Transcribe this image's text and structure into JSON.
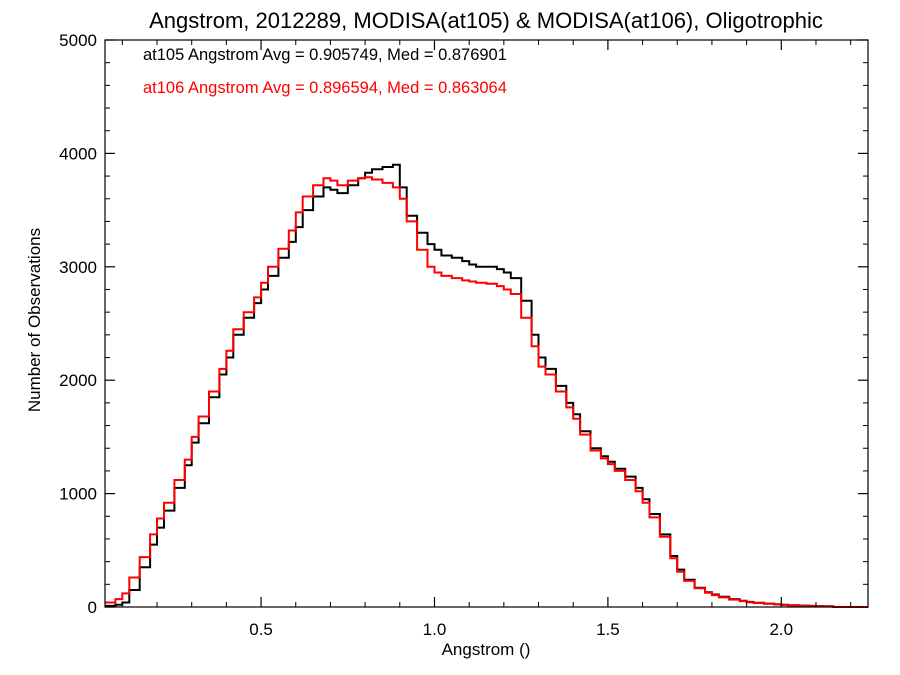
{
  "chart_data": {
    "type": "line",
    "title": "Angstrom, 2012289, MODISA(at105) & MODISA(at106), Oligotrophic",
    "xlabel": "Angstrom ()",
    "ylabel": "Number of Observations",
    "xlim": [
      0.05,
      2.25
    ],
    "ylim": [
      0,
      5000
    ],
    "x_ticks": [
      0.5,
      1.0,
      1.5,
      2.0
    ],
    "x_tick_labels": [
      "0.5",
      "1.0",
      "1.5",
      "2.0"
    ],
    "y_ticks": [
      0,
      1000,
      2000,
      3000,
      4000,
      5000
    ],
    "y_tick_labels": [
      "0",
      "1000",
      "2000",
      "3000",
      "4000",
      "5000"
    ],
    "grid": false,
    "legend_position": "top-left",
    "step": true,
    "series": [
      {
        "name": "at105",
        "label": "at105 Angstrom Avg = 0.905749, Med = 0.876901",
        "color": "#000000",
        "x": [
          0.05,
          0.08,
          0.1,
          0.12,
          0.15,
          0.18,
          0.2,
          0.22,
          0.25,
          0.28,
          0.3,
          0.32,
          0.35,
          0.38,
          0.4,
          0.42,
          0.45,
          0.48,
          0.5,
          0.52,
          0.55,
          0.58,
          0.6,
          0.62,
          0.65,
          0.68,
          0.7,
          0.72,
          0.75,
          0.78,
          0.8,
          0.82,
          0.85,
          0.88,
          0.9,
          0.92,
          0.95,
          0.98,
          1.0,
          1.02,
          1.05,
          1.08,
          1.1,
          1.12,
          1.15,
          1.18,
          1.2,
          1.22,
          1.25,
          1.28,
          1.3,
          1.32,
          1.35,
          1.38,
          1.4,
          1.42,
          1.45,
          1.48,
          1.5,
          1.52,
          1.55,
          1.58,
          1.6,
          1.62,
          1.65,
          1.68,
          1.7,
          1.72,
          1.75,
          1.78,
          1.8,
          1.82,
          1.85,
          1.88,
          1.9,
          1.92,
          1.95,
          1.98,
          2.0,
          2.02,
          2.05,
          2.08,
          2.1,
          2.12,
          2.15
        ],
        "y": [
          10,
          20,
          40,
          150,
          350,
          550,
          700,
          850,
          1050,
          1250,
          1450,
          1620,
          1850,
          2050,
          2200,
          2400,
          2550,
          2680,
          2800,
          2920,
          3080,
          3220,
          3350,
          3500,
          3620,
          3700,
          3680,
          3650,
          3720,
          3780,
          3830,
          3860,
          3880,
          3900,
          3700,
          3450,
          3300,
          3200,
          3150,
          3100,
          3080,
          3050,
          3020,
          3000,
          3000,
          2980,
          2950,
          2900,
          2700,
          2400,
          2200,
          2100,
          1950,
          1800,
          1700,
          1550,
          1400,
          1330,
          1280,
          1220,
          1150,
          1050,
          950,
          820,
          640,
          450,
          330,
          240,
          170,
          130,
          110,
          90,
          70,
          55,
          45,
          38,
          30,
          25,
          20,
          15,
          12,
          10,
          8,
          6,
          0
        ]
      },
      {
        "name": "at106",
        "label": "at106 Angstrom Avg = 0.896594, Med = 0.863064",
        "color": "#ff0000",
        "x": [
          0.05,
          0.08,
          0.1,
          0.12,
          0.15,
          0.18,
          0.2,
          0.22,
          0.25,
          0.28,
          0.3,
          0.32,
          0.35,
          0.38,
          0.4,
          0.42,
          0.45,
          0.48,
          0.5,
          0.52,
          0.55,
          0.58,
          0.6,
          0.62,
          0.65,
          0.68,
          0.7,
          0.72,
          0.75,
          0.78,
          0.8,
          0.82,
          0.85,
          0.88,
          0.9,
          0.92,
          0.95,
          0.98,
          1.0,
          1.02,
          1.05,
          1.08,
          1.1,
          1.12,
          1.15,
          1.18,
          1.2,
          1.22,
          1.25,
          1.28,
          1.3,
          1.32,
          1.35,
          1.38,
          1.4,
          1.42,
          1.45,
          1.48,
          1.5,
          1.52,
          1.55,
          1.58,
          1.6,
          1.62,
          1.65,
          1.68,
          1.7,
          1.72,
          1.75,
          1.78,
          1.8,
          1.82,
          1.85,
          1.88,
          1.9,
          1.92,
          1.95,
          1.98,
          2.0,
          2.02,
          2.05,
          2.08,
          2.1,
          2.12,
          2.15
        ],
        "y": [
          40,
          70,
          120,
          260,
          440,
          640,
          780,
          920,
          1120,
          1300,
          1500,
          1680,
          1900,
          2100,
          2260,
          2450,
          2600,
          2730,
          2860,
          3000,
          3160,
          3320,
          3480,
          3620,
          3720,
          3780,
          3760,
          3720,
          3760,
          3780,
          3790,
          3770,
          3740,
          3700,
          3600,
          3400,
          3150,
          3000,
          2950,
          2920,
          2900,
          2880,
          2870,
          2860,
          2850,
          2830,
          2800,
          2760,
          2550,
          2300,
          2120,
          2050,
          1900,
          1760,
          1660,
          1520,
          1380,
          1310,
          1260,
          1200,
          1120,
          1020,
          920,
          790,
          620,
          430,
          310,
          230,
          165,
          125,
          105,
          85,
          65,
          52,
          42,
          35,
          28,
          22,
          18,
          14,
          10,
          8,
          6,
          5,
          0
        ]
      }
    ]
  }
}
